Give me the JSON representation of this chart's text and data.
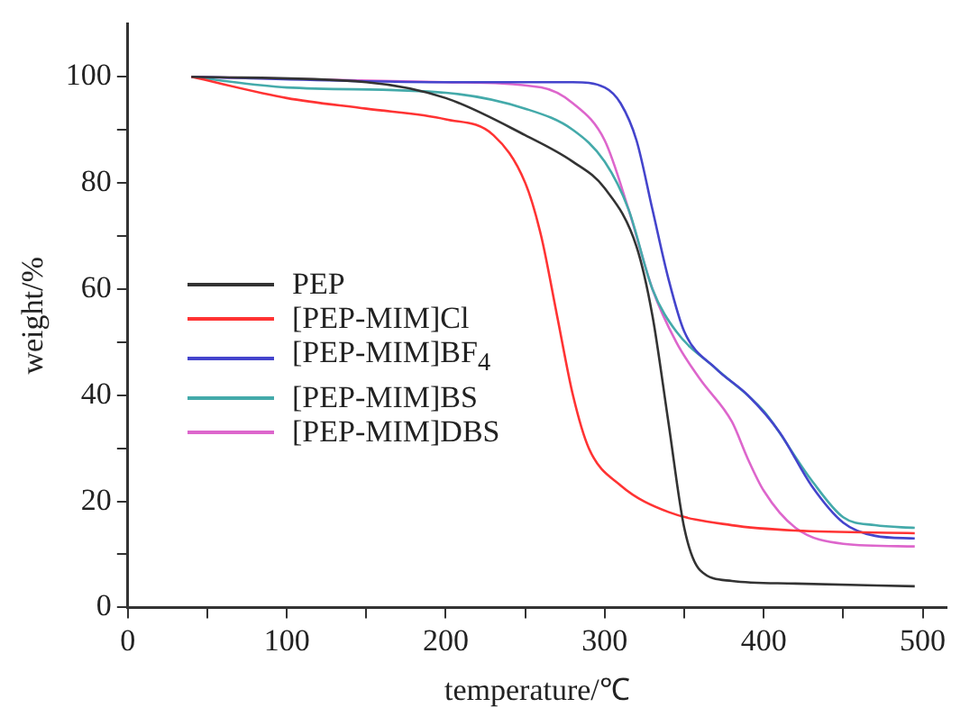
{
  "chart_data": {
    "type": "line",
    "xlabel": "temperature/℃",
    "ylabel": "weight/%",
    "xlim": [
      0,
      515
    ],
    "ylim": [
      0,
      110
    ],
    "xticks": [
      0,
      {
        "value": 50,
        "label": null
      },
      100,
      {
        "value": 150,
        "label": null
      },
      200,
      {
        "value": 250,
        "label": null
      },
      300,
      {
        "value": 350,
        "label": null
      },
      400,
      {
        "value": 450,
        "label": null
      },
      500
    ],
    "yticks": [
      0,
      {
        "value": 10,
        "label": null
      },
      20,
      {
        "value": 30,
        "label": null
      },
      40,
      {
        "value": 50,
        "label": null
      },
      60,
      {
        "value": 70,
        "label": null
      },
      80,
      {
        "value": 90,
        "label": null
      },
      100
    ],
    "grid": false,
    "legend": "left",
    "marker": "none",
    "line_style": "solid",
    "series": [
      {
        "name": "PEP",
        "color": "#333333",
        "x": [
          40,
          150,
          200,
          250,
          280,
          300,
          320,
          330,
          340,
          350,
          360,
          380,
          420,
          495
        ],
        "values": [
          100,
          99,
          96,
          89,
          84,
          79,
          68,
          55,
          35,
          15,
          7,
          5,
          4.5,
          4
        ]
      },
      {
        "name": "[PEP-MIM]Cl",
        "color": "#ff3333",
        "x": [
          40,
          100,
          150,
          200,
          230,
          250,
          260,
          270,
          280,
          290,
          310,
          340,
          380,
          420,
          495
        ],
        "values": [
          100,
          96,
          94,
          92,
          89,
          80,
          70,
          55,
          40,
          30,
          23,
          18,
          15.5,
          14.5,
          14
        ]
      },
      {
        "name": "[PEP-MIM]BF$_{4}$",
        "color": "#4444cc",
        "x": [
          40,
          200,
          280,
          300,
          310,
          320,
          330,
          340,
          350,
          370,
          390,
          410,
          430,
          450,
          470,
          495
        ],
        "values": [
          100,
          99,
          99,
          98,
          95,
          88,
          75,
          62,
          52,
          45,
          40,
          33,
          23,
          16,
          13.5,
          13
        ]
      },
      {
        "name": "[PEP-MIM]BS",
        "color": "#44aaaa",
        "x": [
          40,
          100,
          200,
          250,
          280,
          300,
          315,
          330,
          345,
          370,
          400,
          430,
          450,
          470,
          495
        ],
        "values": [
          100,
          98,
          97,
          94,
          90,
          84,
          75,
          60,
          52,
          45,
          37,
          24,
          17,
          15.5,
          15
        ]
      },
      {
        "name": "[PEP-MIM]DBS",
        "color": "#dd66cc",
        "x": [
          40,
          200,
          260,
          280,
          300,
          315,
          330,
          345,
          360,
          380,
          390,
          400,
          420,
          450,
          495
        ],
        "values": [
          100,
          99,
          98,
          95,
          88,
          75,
          60,
          50,
          43,
          35,
          28,
          22,
          15,
          12,
          11.5
        ]
      }
    ]
  }
}
